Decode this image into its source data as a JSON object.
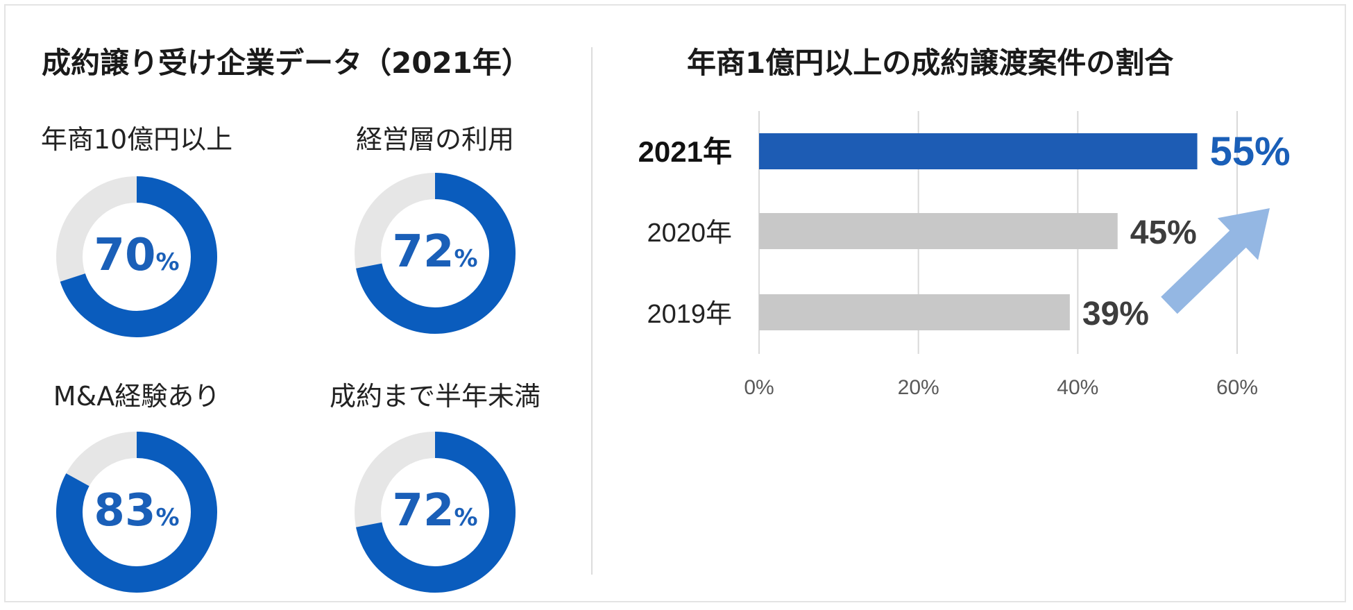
{
  "left_panel": {
    "title": "成約譲り受け企業データ（2021年）",
    "donuts": [
      {
        "label": "年商10億円以上",
        "value": 70,
        "unit": "%"
      },
      {
        "label": "経営層の利用",
        "value": 72,
        "unit": "%"
      },
      {
        "label": "M&A経験あり",
        "value": 83,
        "unit": "%"
      },
      {
        "label": "成約まで半年未満",
        "value": 72,
        "unit": "%"
      }
    ]
  },
  "colors": {
    "accent_blue": "#0a5cbd",
    "bar_highlight": "#1d5cb4",
    "bar_gray": "#c8c8c8",
    "donut_track": "#e6e6e6",
    "value_blue": "#1a5fb8",
    "value_dark": "#3d3d3d",
    "arrow_blue": "#94b7e3"
  },
  "chart_data": [
    {
      "type": "donut",
      "title": "年商10億円以上",
      "values": [
        70,
        30
      ],
      "value_label": "70%"
    },
    {
      "type": "donut",
      "title": "経営層の利用",
      "values": [
        72,
        28
      ],
      "value_label": "72%"
    },
    {
      "type": "donut",
      "title": "M&A経験あり",
      "values": [
        83,
        17
      ],
      "value_label": "83%"
    },
    {
      "type": "donut",
      "title": "成約まで半年未満",
      "values": [
        72,
        28
      ],
      "value_label": "72%"
    },
    {
      "type": "bar",
      "orientation": "horizontal",
      "title": "年商1億円以上の成約譲渡案件の割合",
      "categories": [
        "2021年",
        "2020年",
        "2019年"
      ],
      "values": [
        55,
        45,
        39
      ],
      "value_labels": [
        "55%",
        "45%",
        "39%"
      ],
      "highlight_category": "2021年",
      "xlim": [
        0,
        60
      ],
      "xticks": [
        "0%",
        "20%",
        "40%",
        "60%"
      ],
      "grid": true,
      "annotation": "upward-arrow"
    }
  ]
}
